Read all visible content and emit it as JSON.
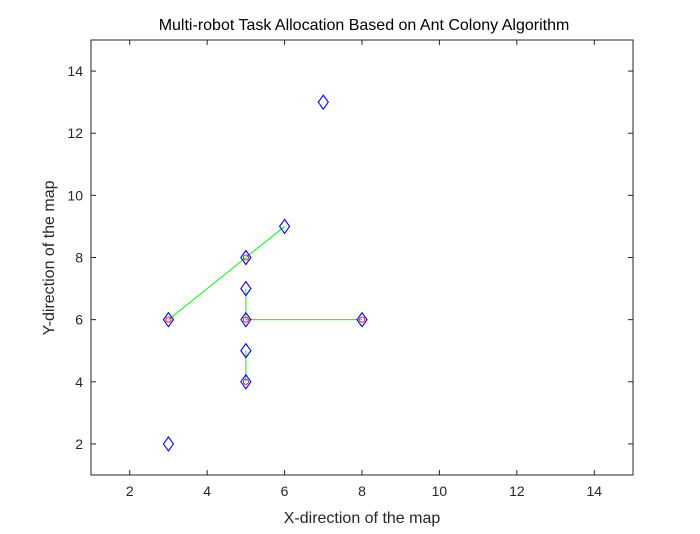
{
  "chart_data": {
    "type": "scatter",
    "title": "Multi-robot Task Allocation Based on Ant Colony Algorithm",
    "xlabel": "X-direction of the map",
    "ylabel": "Y-direction of the map",
    "xlim": [
      1,
      15
    ],
    "ylim": [
      1,
      15
    ],
    "xticks": [
      2,
      4,
      6,
      8,
      10,
      12,
      14
    ],
    "yticks": [
      2,
      4,
      6,
      8,
      10,
      12,
      14
    ],
    "grid": false,
    "marker": "diamond",
    "marker_color": "#0000ff",
    "line_color": "#00ff00",
    "highlight_color": "#ff0000",
    "points": [
      {
        "x": 7,
        "y": 13,
        "highlight": false
      },
      {
        "x": 6,
        "y": 9,
        "highlight": false
      },
      {
        "x": 5,
        "y": 8,
        "highlight": true
      },
      {
        "x": 5,
        "y": 7,
        "highlight": false
      },
      {
        "x": 3,
        "y": 6,
        "highlight": true
      },
      {
        "x": 5,
        "y": 6,
        "highlight": true
      },
      {
        "x": 8,
        "y": 6,
        "highlight": true
      },
      {
        "x": 5,
        "y": 5,
        "highlight": false
      },
      {
        "x": 5,
        "y": 4,
        "highlight": true
      },
      {
        "x": 3,
        "y": 2,
        "highlight": false
      }
    ],
    "paths": [
      [
        [
          3,
          6
        ],
        [
          5,
          8
        ],
        [
          6,
          9
        ]
      ],
      [
        [
          5,
          7
        ],
        [
          5,
          6
        ],
        [
          8,
          6
        ]
      ],
      [
        [
          5,
          5
        ],
        [
          5,
          4
        ]
      ]
    ]
  }
}
